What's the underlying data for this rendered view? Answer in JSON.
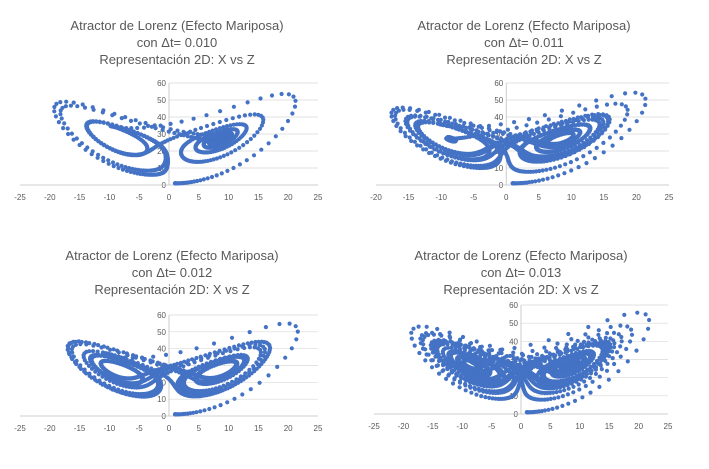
{
  "chart_data": [
    {
      "type": "scatter",
      "title": [
        "Atractor de Lorenz (Efecto Mariposa)",
        "con Δt= 0.010",
        "Representación 2D: X vs Z"
      ],
      "xlim": [
        -25,
        25
      ],
      "ylim": [
        0,
        60
      ],
      "xticks": [
        "-25",
        "-20",
        "-15",
        "-10",
        "-5",
        "0",
        "5",
        "10",
        "15",
        "20",
        "25"
      ],
      "yticks": [
        "0",
        "10",
        "20",
        "30",
        "40",
        "50",
        "60"
      ],
      "dt": 0.01,
      "steps": 900,
      "marker_color": "#4472c4",
      "grid": "horizontal"
    },
    {
      "type": "scatter",
      "title": [
        "Atractor de Lorenz (Efecto Mariposa)",
        "con Δt= 0.011",
        "Representación 2D: X vs Z"
      ],
      "xlim": [
        -20,
        25
      ],
      "ylim": [
        0,
        60
      ],
      "xticks": [
        "-20",
        "-15",
        "-10",
        "-5",
        "0",
        "5",
        "10",
        "15",
        "20",
        "25"
      ],
      "yticks": [
        "0",
        "10",
        "20",
        "30",
        "40",
        "50",
        "60"
      ],
      "dt": 0.011,
      "steps": 1400,
      "marker_color": "#4472c4",
      "grid": "horizontal"
    },
    {
      "type": "scatter",
      "title": [
        "Atractor de Lorenz (Efecto Mariposa)",
        "con Δt= 0.012",
        "Representación 2D: X vs Z"
      ],
      "xlim": [
        -25,
        25
      ],
      "ylim": [
        0,
        60
      ],
      "xticks": [
        "-25",
        "-20",
        "-15",
        "-10",
        "-5",
        "0",
        "5",
        "10",
        "15",
        "20",
        "25"
      ],
      "yticks": [
        "0",
        "10",
        "20",
        "30",
        "40",
        "50",
        "60"
      ],
      "dt": 0.012,
      "steps": 1100,
      "marker_color": "#4472c4",
      "grid": "horizontal"
    },
    {
      "type": "scatter",
      "title": [
        "Atractor de Lorenz (Efecto Mariposa)",
        "con Δt= 0.013",
        "Representación 2D: X vs Z"
      ],
      "xlim": [
        -25,
        25
      ],
      "ylim": [
        0,
        60
      ],
      "xticks": [
        "-25",
        "-20",
        "-15",
        "-10",
        "-5",
        "0",
        "5",
        "10",
        "15",
        "20",
        "25"
      ],
      "yticks": [
        "0",
        "10",
        "20",
        "30",
        "40",
        "50",
        "60"
      ],
      "dt": 0.013,
      "steps": 1600,
      "marker_color": "#4472c4",
      "grid": "horizontal"
    }
  ]
}
